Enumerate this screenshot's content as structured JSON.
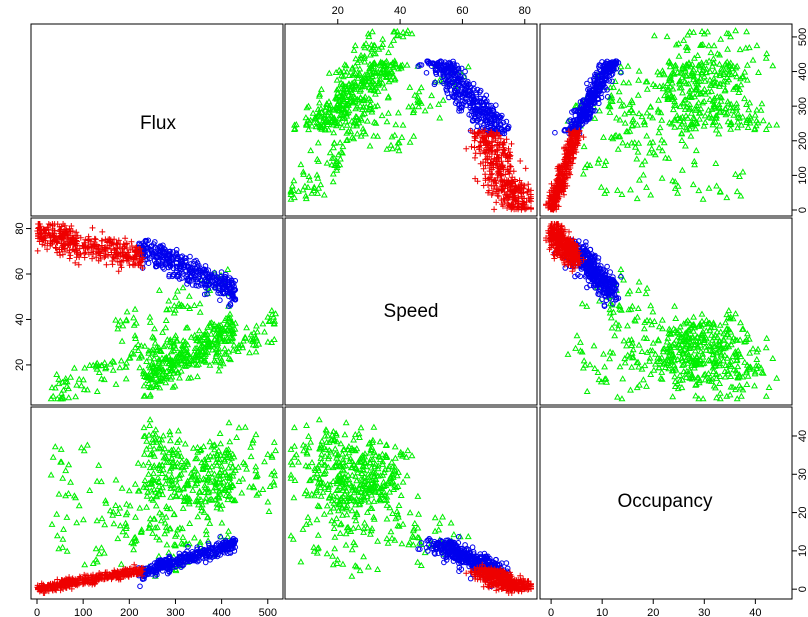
{
  "chart_data": {
    "type": "scatter",
    "subtype": "scatterplot-matrix",
    "variables": [
      {
        "name": "Flux",
        "range": [
          0,
          520
        ],
        "ticks": [
          0,
          100,
          200,
          300,
          400,
          500
        ]
      },
      {
        "name": "Speed",
        "range": [
          5,
          82
        ],
        "ticks": [
          20,
          40,
          60,
          80
        ]
      },
      {
        "name": "Occupancy",
        "range": [
          -1,
          46
        ],
        "ticks": [
          0,
          10,
          20,
          30,
          40
        ]
      }
    ],
    "axis_layout": {
      "bottom": "Flux",
      "top": "Speed",
      "bottom_right": "Occupancy",
      "left": "Speed",
      "right_top": "Flux",
      "right_bottom": "Occupancy"
    },
    "groups": [
      {
        "color": "#00ee00",
        "marker": "triangle",
        "clusters": [
          {
            "n": 300,
            "flux": [
              230,
              430
            ],
            "speed": [
              12,
              36
            ],
            "occ": [
              22,
              42
            ]
          },
          {
            "n": 120,
            "flux": [
              30,
              330
            ],
            "speed": [
              8,
              32
            ],
            "occ": [
              5,
              38
            ]
          },
          {
            "n": 50,
            "flux": [
              380,
              520
            ],
            "speed": [
              18,
              40
            ],
            "occ": [
              22,
              46
            ]
          },
          {
            "n": 50,
            "flux": [
              170,
              420
            ],
            "speed": [
              36,
              58
            ],
            "occ": [
              8,
              20
            ]
          }
        ]
      },
      {
        "color": "#0000ee",
        "marker": "circle",
        "clusters": [
          {
            "n": 380,
            "flux": [
              220,
              430
            ],
            "speed": [
              52,
              72
            ],
            "occ": [
              4,
              12
            ]
          }
        ]
      },
      {
        "color": "#ee0000",
        "marker": "plus",
        "clusters": [
          {
            "n": 400,
            "flux": [
              0,
              230
            ],
            "speed": [
              59,
              78
            ],
            "occ": [
              0,
              5
            ]
          }
        ]
      }
    ],
    "grid": false,
    "legend": "none"
  }
}
